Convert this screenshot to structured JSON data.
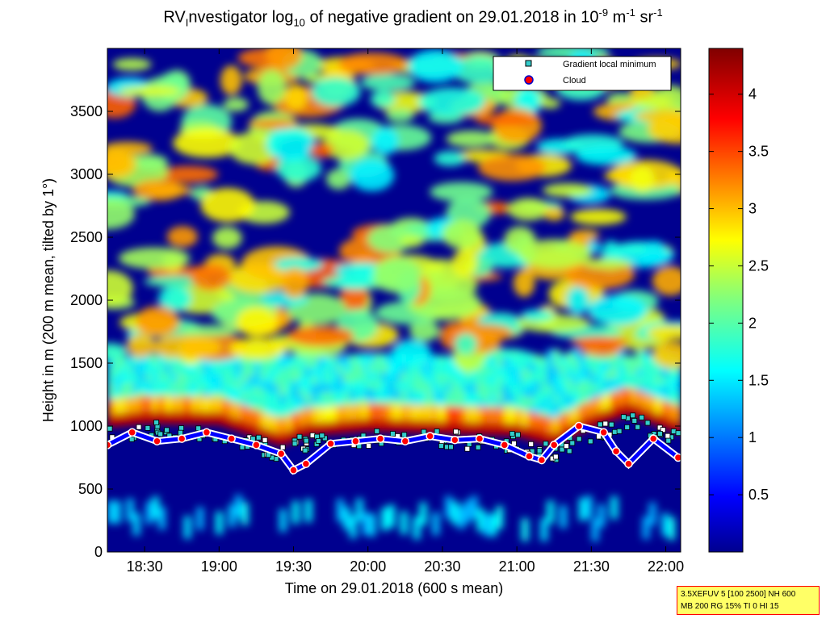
{
  "chart_data": {
    "type": "heatmap",
    "title": {
      "prefix": "RV",
      "prefix_sub": "I",
      "part1": "nvestigator log",
      "log_sub": "10",
      "part2": " of negative gradient on 29.01.2018 in 10",
      "exp1": "-9",
      "unit1": " m",
      "exp2": "-1",
      "unit2": " sr",
      "exp3": "-1"
    },
    "xlabel": "Time on 29.01.2018 (600 s mean)",
    "ylabel": "Height in m (200 m mean, tilted by 1°)",
    "x_range": [
      "18:15",
      "22:06"
    ],
    "x_ticks": [
      "18:30",
      "19:00",
      "19:30",
      "20:00",
      "20:30",
      "21:00",
      "21:30",
      "22:00"
    ],
    "ylim": [
      0,
      4000
    ],
    "y_ticks": [
      0,
      500,
      1000,
      1500,
      2000,
      2500,
      3000,
      3500
    ],
    "colorbar": {
      "range": [
        0,
        4.4
      ],
      "ticks": [
        0.5,
        1,
        1.5,
        2,
        2.5,
        3,
        3.5,
        4
      ],
      "colormap": "jet"
    },
    "legend": {
      "placement": "top-right",
      "entries": [
        {
          "label": "Gradient local minimum",
          "marker": "square",
          "color": "#33cccc"
        },
        {
          "label": "Cloud",
          "marker": "circle",
          "color": "#ff0000"
        }
      ]
    },
    "cloud_base_series": {
      "name": "Cloud",
      "x": [
        "18:15",
        "18:25",
        "18:35",
        "18:45",
        "18:55",
        "19:05",
        "19:15",
        "19:25",
        "19:30",
        "19:35",
        "19:45",
        "19:55",
        "20:05",
        "20:15",
        "20:25",
        "20:35",
        "20:45",
        "20:55",
        "21:05",
        "21:10",
        "21:15",
        "21:25",
        "21:35",
        "21:40",
        "21:45",
        "21:55",
        "22:05"
      ],
      "y": [
        850,
        950,
        880,
        900,
        950,
        900,
        850,
        780,
        650,
        700,
        860,
        880,
        900,
        880,
        920,
        890,
        900,
        850,
        760,
        730,
        850,
        1000,
        950,
        800,
        700,
        900,
        750
      ]
    },
    "boundary_layer_top": {
      "x": [
        "18:15",
        "18:30",
        "19:00",
        "19:25",
        "19:35",
        "20:00",
        "20:30",
        "21:00",
        "21:15",
        "21:30",
        "21:45",
        "22:05"
      ],
      "y": [
        1050,
        1080,
        1070,
        900,
        980,
        1020,
        1000,
        980,
        900,
        1050,
        1150,
        1000
      ]
    }
  },
  "info_box": {
    "line1": "3.5XEFUV 5 [100 2500] NH 600",
    "line2": "MB 200 RG 15% TI 0 HI 15"
  },
  "colors": {
    "low": "#00008f",
    "high": "#800000",
    "legend_square": "#33cccc",
    "cloud_marker": "#ff0000",
    "info_border": "#ff0000",
    "info_fill": "#ffff66"
  }
}
